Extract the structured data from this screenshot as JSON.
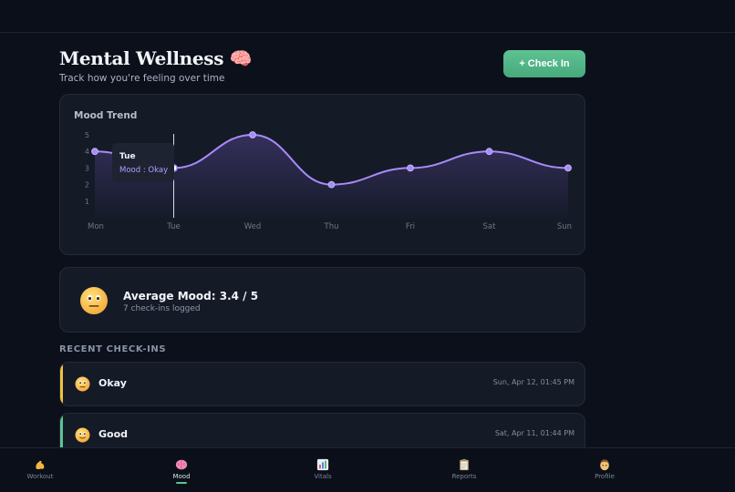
{
  "header": {
    "title": "Mental Wellness 🧠",
    "subtitle": "Track how you're feeling over time",
    "checkin_label": "+ Check In"
  },
  "chart_data": {
    "type": "line",
    "title": "Mood Trend",
    "categories": [
      "Mon",
      "Tue",
      "Wed",
      "Thu",
      "Fri",
      "Sat",
      "Sun"
    ],
    "series": [
      {
        "values": [
          4,
          3,
          5,
          2,
          3,
          4,
          3
        ]
      }
    ],
    "yticks": [
      1,
      2,
      3,
      4,
      5
    ],
    "ylim": [
      0,
      5
    ],
    "grid": false,
    "tooltip": {
      "day": "Tue",
      "text": "Mood : Okay"
    },
    "colors": {
      "line": "#a78bfa",
      "point": "#a78bfa"
    }
  },
  "summary": {
    "avg_label": "Average Mood: 3.4 / 5",
    "count_label": "7 check-ins logged",
    "emoji_icon": "neutral-face-icon"
  },
  "recent": {
    "heading": "RECENT CHECK-INS",
    "entries": [
      {
        "label": "Okay",
        "time": "Sun, Apr 12, 01:45 PM",
        "accent": "#f0c040",
        "icon": "neutral-face-icon"
      },
      {
        "label": "Good",
        "time": "Sat, Apr 11, 01:44 PM",
        "accent": "#5ec293",
        "icon": "slight-smile-icon"
      }
    ]
  },
  "nav": {
    "items": [
      {
        "label": "Workout",
        "icon": "flexed-biceps-icon"
      },
      {
        "label": "Mood",
        "icon": "brain-icon",
        "active": true
      },
      {
        "label": "Vitals",
        "icon": "bar-chart-icon"
      },
      {
        "label": "Reports",
        "icon": "clipboard-icon"
      },
      {
        "label": "Profile",
        "icon": "face-icon"
      }
    ]
  }
}
